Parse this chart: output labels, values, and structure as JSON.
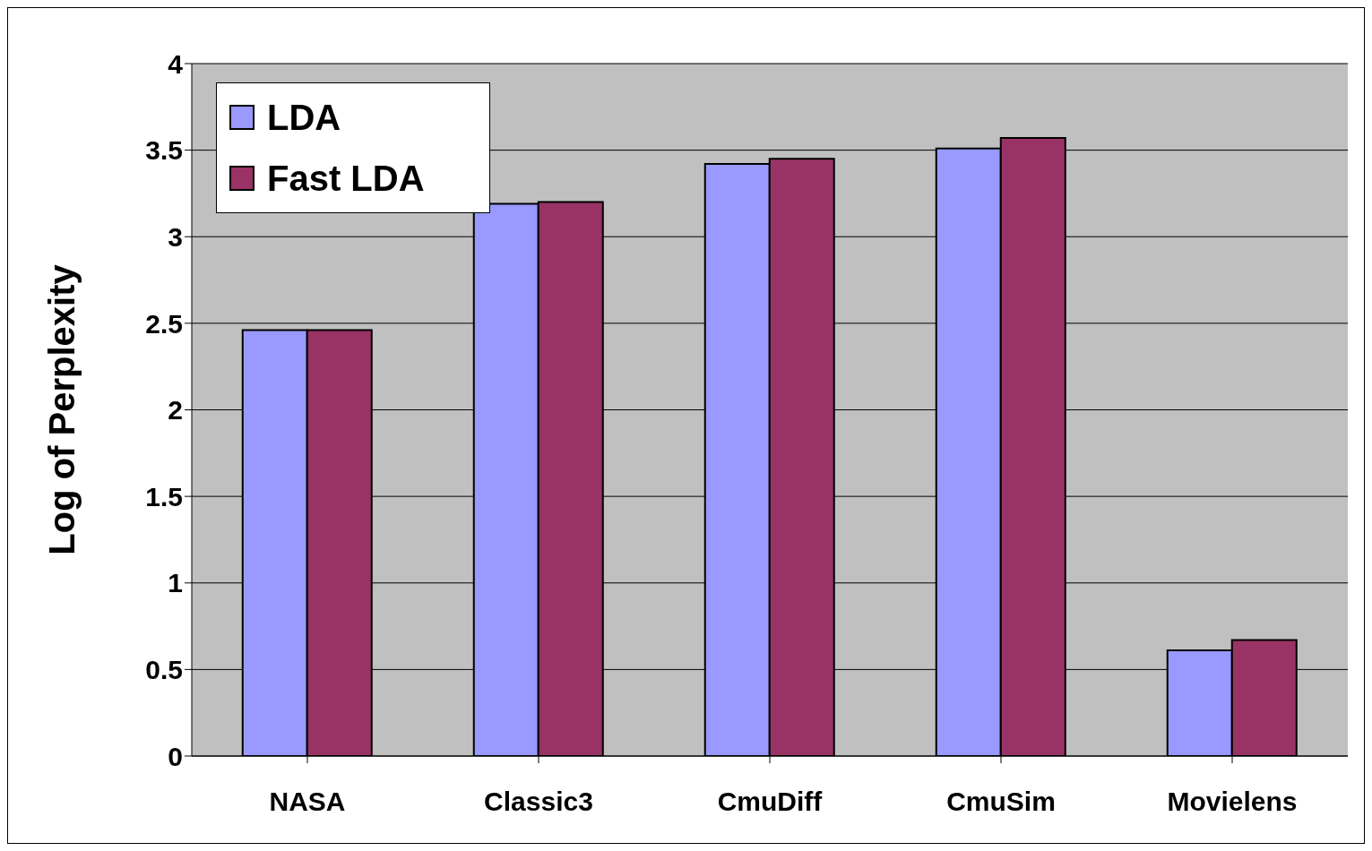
{
  "chart_data": {
    "type": "bar",
    "ylabel": "Log of Perplexity",
    "categories": [
      "NASA",
      "Classic3",
      "CmuDiff",
      "CmuSim",
      "Movielens"
    ],
    "series": [
      {
        "name": "LDA",
        "color": "#9999ff",
        "values": [
          2.46,
          3.19,
          3.42,
          3.51,
          0.61
        ]
      },
      {
        "name": "Fast LDA",
        "color": "#993366",
        "values": [
          2.46,
          3.2,
          3.45,
          3.57,
          0.67
        ]
      }
    ],
    "ylim": [
      0,
      4
    ],
    "yticks": [
      0,
      0.5,
      1,
      1.5,
      2,
      2.5,
      3,
      3.5,
      4
    ],
    "grid": "y",
    "legend": "top left"
  }
}
